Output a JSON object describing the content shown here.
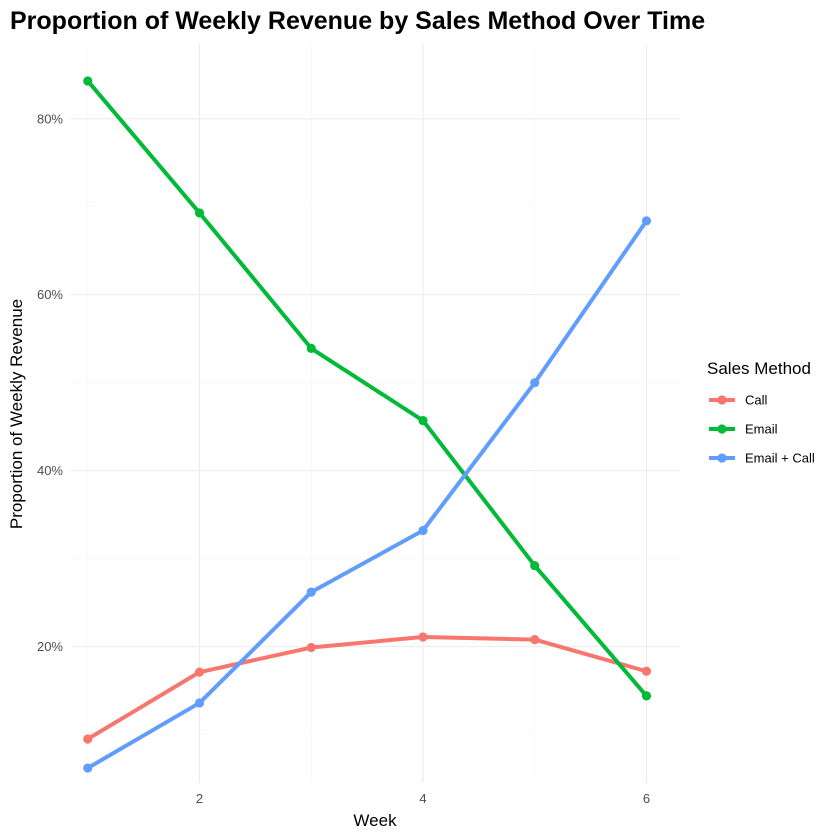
{
  "chart_data": {
    "type": "line",
    "title": "Proportion of Weekly Revenue by Sales Method Over Time",
    "xlabel": "Week",
    "ylabel": "Proportion of Weekly Revenue",
    "x": [
      1,
      2,
      3,
      4,
      5,
      6
    ],
    "xlim": [
      0.85,
      6.3
    ],
    "ylim": [
      0.045,
      0.885
    ],
    "x_ticks": [
      2,
      4,
      6
    ],
    "x_tick_labels": [
      "2",
      "4",
      "6"
    ],
    "x_minor_ticks": [
      1,
      3,
      5
    ],
    "y_ticks": [
      0.2,
      0.4,
      0.6,
      0.8
    ],
    "y_tick_labels": [
      "20%",
      "40%",
      "60%",
      "80%"
    ],
    "y_minor_ticks": [
      0.1,
      0.3,
      0.5,
      0.7
    ],
    "grid": true,
    "legend": {
      "title": "Sales Method",
      "position": "right"
    },
    "series": [
      {
        "name": "Call",
        "color": "#F8766D",
        "values": [
          0.095,
          0.171,
          0.199,
          0.211,
          0.208,
          0.172
        ]
      },
      {
        "name": "Email",
        "color": "#00BA38",
        "values": [
          0.843,
          0.693,
          0.539,
          0.457,
          0.292,
          0.144
        ]
      },
      {
        "name": "Email + Call",
        "color": "#619CFF",
        "values": [
          0.062,
          0.136,
          0.262,
          0.332,
          0.5,
          0.684
        ]
      }
    ]
  }
}
